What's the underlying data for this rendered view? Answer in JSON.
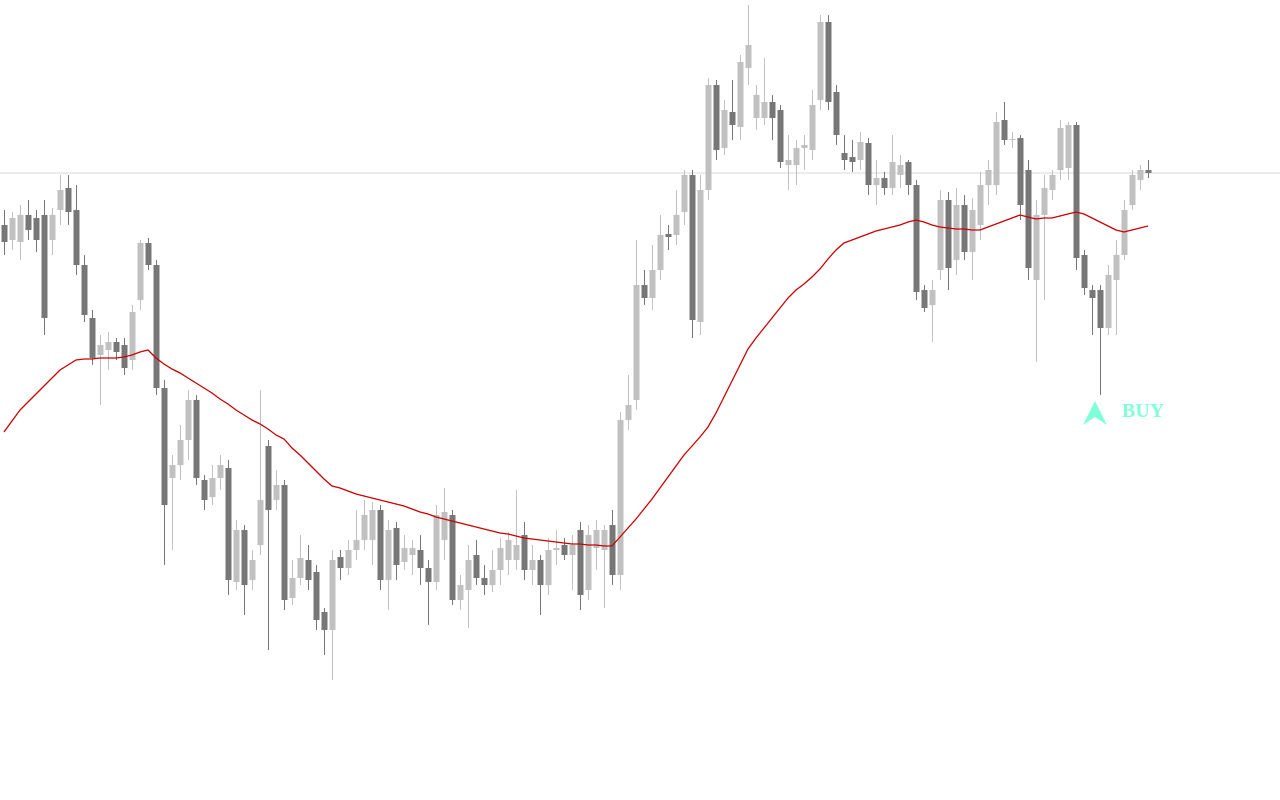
{
  "chart_data": {
    "type": "candlestick",
    "ylim": [
      0,
      800
    ],
    "bull_color": "#c0c0c0",
    "bear_color": "#777777",
    "open": [
      575,
      560,
      558,
      585,
      582,
      585,
      560,
      590,
      612,
      590,
      535,
      482,
      445,
      450,
      458,
      455,
      440,
      500,
      557,
      535,
      412,
      322,
      335,
      360,
      400,
      320,
      303,
      322,
      332,
      218,
      270,
      220,
      255,
      354,
      300,
      315,
      202,
      222,
      240,
      228,
      188,
      170,
      243,
      232,
      250,
      260,
      260,
      290,
      220,
      272,
      238,
      245,
      250,
      232,
      218,
      260,
      285,
      200,
      210,
      245,
      222,
      215,
      230,
      240,
      240,
      265,
      230,
      240,
      215,
      250,
      255,
      245,
      270,
      210,
      252,
      250,
      275,
      225,
      380,
      400,
      515,
      502,
      530,
      566,
      565,
      588,
      625,
      478,
      610,
      715,
      652,
      688,
      673,
      732,
      682,
      682,
      698,
      690,
      635,
      635,
      652,
      650,
      700,
      778,
      708,
      647,
      643,
      640,
      657,
      615,
      622,
      612,
      625,
      638,
      615,
      510,
      495,
      530,
      600,
      540,
      595,
      548,
      575,
      615,
      615,
      680,
      660,
      662,
      630,
      520,
      585,
      610,
      630,
      632,
      675,
      545,
      510,
      510,
      472,
      520,
      545,
      595,
      620,
      630
    ],
    "high": [
      590,
      588,
      595,
      600,
      590,
      600,
      592,
      625,
      625,
      615,
      545,
      490,
      465,
      468,
      462,
      462,
      495,
      560,
      562,
      540,
      420,
      345,
      375,
      410,
      405,
      325,
      335,
      345,
      340,
      280,
      275,
      250,
      410,
      360,
      330,
      320,
      240,
      265,
      255,
      235,
      192,
      250,
      250,
      260,
      290,
      300,
      298,
      295,
      280,
      278,
      265,
      260,
      265,
      240,
      295,
      312,
      290,
      225,
      255,
      260,
      235,
      250,
      262,
      268,
      310,
      278,
      255,
      245,
      262,
      270,
      262,
      265,
      278,
      275,
      280,
      275,
      290,
      388,
      425,
      560,
      530,
      555,
      585,
      575,
      610,
      630,
      630,
      625,
      722,
      720,
      700,
      720,
      745,
      795,
      715,
      742,
      705,
      695,
      665,
      660,
      665,
      710,
      785,
      785,
      715,
      665,
      660,
      668,
      662,
      640,
      628,
      665,
      645,
      640,
      620,
      515,
      520,
      610,
      608,
      612,
      605,
      602,
      628,
      640,
      688,
      698,
      668,
      665,
      640,
      600,
      625,
      630,
      680,
      678,
      678,
      550,
      515,
      515,
      535,
      560,
      600,
      630,
      635,
      640
    ],
    "low": [
      545,
      550,
      540,
      560,
      548,
      465,
      545,
      575,
      575,
      525,
      478,
      435,
      395,
      430,
      440,
      425,
      430,
      490,
      530,
      405,
      235,
      250,
      320,
      340,
      315,
      290,
      295,
      310,
      205,
      210,
      185,
      210,
      245,
      150,
      290,
      190,
      195,
      215,
      210,
      170,
      145,
      120,
      220,
      225,
      240,
      250,
      235,
      210,
      190,
      220,
      230,
      225,
      215,
      175,
      210,
      240,
      195,
      190,
      172,
      215,
      205,
      208,
      215,
      225,
      230,
      220,
      215,
      185,
      205,
      235,
      240,
      210,
      190,
      200,
      230,
      192,
      215,
      210,
      370,
      390,
      495,
      490,
      520,
      550,
      555,
      575,
      462,
      465,
      600,
      640,
      645,
      660,
      660,
      715,
      670,
      675,
      660,
      632,
      610,
      615,
      630,
      640,
      690,
      690,
      655,
      630,
      628,
      630,
      605,
      595,
      605,
      605,
      612,
      605,
      500,
      488,
      458,
      520,
      510,
      525,
      540,
      520,
      560,
      595,
      605,
      655,
      652,
      580,
      520,
      438,
      500,
      600,
      620,
      620,
      530,
      505,
      465,
      405,
      465,
      465,
      540,
      590,
      610,
      622
    ],
    "close": [
      558,
      582,
      585,
      570,
      560,
      482,
      585,
      610,
      588,
      535,
      485,
      442,
      455,
      458,
      448,
      432,
      488,
      557,
      535,
      412,
      295,
      335,
      360,
      400,
      322,
      300,
      322,
      335,
      220,
      270,
      215,
      240,
      300,
      290,
      315,
      200,
      222,
      242,
      220,
      180,
      170,
      240,
      232,
      250,
      260,
      285,
      290,
      220,
      270,
      235,
      252,
      252,
      232,
      218,
      285,
      288,
      200,
      215,
      240,
      222,
      215,
      230,
      252,
      260,
      255,
      230,
      240,
      215,
      250,
      252,
      245,
      255,
      205,
      265,
      270,
      270,
      225,
      380,
      395,
      515,
      502,
      530,
      565,
      563,
      585,
      625,
      480,
      610,
      715,
      650,
      690,
      675,
      738,
      755,
      705,
      698,
      682,
      638,
      640,
      652,
      655,
      695,
      778,
      698,
      665,
      640,
      638,
      658,
      615,
      622,
      612,
      638,
      635,
      615,
      508,
      492,
      510,
      600,
      532,
      595,
      548,
      590,
      615,
      630,
      678,
      660,
      661,
      595,
      532,
      585,
      612,
      625,
      672,
      675,
      542,
      512,
      502,
      472,
      525,
      545,
      590,
      625,
      630,
      627
    ],
    "ma": {
      "color": "#cc0000",
      "values": [
        368,
        379,
        390,
        398,
        406,
        414,
        422,
        430,
        435,
        440,
        441,
        441,
        442,
        442,
        442,
        443,
        445,
        448,
        450,
        442,
        436,
        431,
        427,
        422,
        417,
        412,
        407,
        401,
        396,
        390,
        385,
        380,
        376,
        371,
        365,
        361,
        352,
        345,
        337,
        329,
        321,
        314,
        312,
        309,
        306,
        304,
        302,
        300,
        298,
        296,
        294,
        291,
        288,
        286,
        283,
        281,
        279,
        277,
        275,
        273,
        271,
        269,
        267,
        266,
        264,
        262,
        261,
        260,
        259,
        258,
        257,
        256,
        256,
        255,
        255,
        254,
        254,
        263,
        272,
        281,
        291,
        301,
        312,
        323,
        334,
        345,
        354,
        363,
        373,
        387,
        403,
        419,
        435,
        451,
        462,
        472,
        482,
        492,
        502,
        510,
        516,
        523,
        531,
        541,
        550,
        557,
        560,
        563,
        566,
        569,
        571,
        573,
        575,
        578,
        580,
        578,
        575,
        573,
        572,
        571,
        571,
        570,
        570,
        573,
        576,
        579,
        582,
        585,
        583,
        581,
        582,
        582,
        584,
        586,
        588,
        586,
        582,
        578,
        574,
        570,
        568,
        570,
        572,
        574
      ]
    },
    "hline": {
      "value": 627,
      "color": "#d8d8d8"
    },
    "signal": {
      "text": "BUY",
      "value": 387,
      "color": "#80ffd8"
    }
  }
}
